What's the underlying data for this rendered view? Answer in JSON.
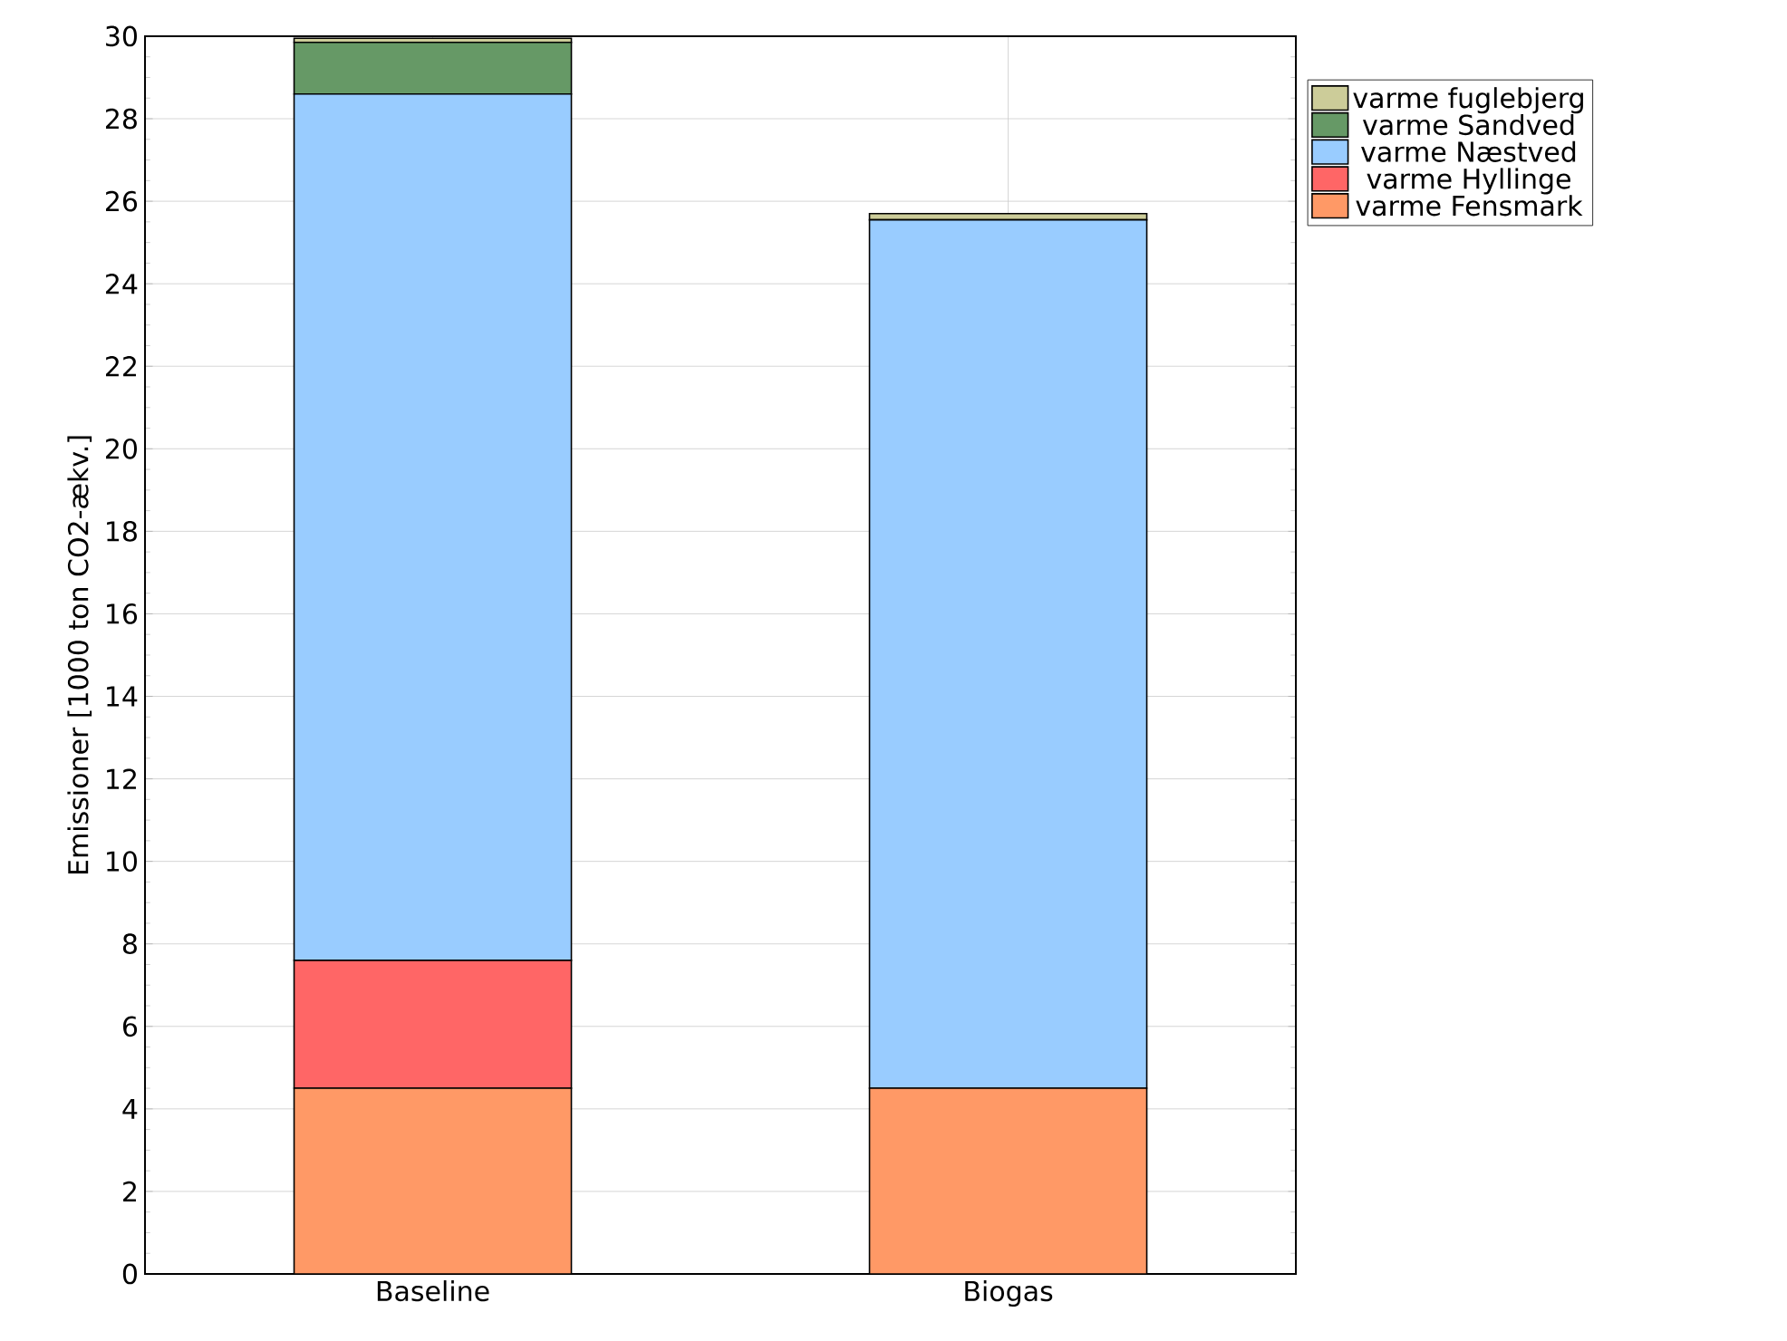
{
  "chart_data": {
    "type": "bar",
    "stacked": true,
    "ylabel": "Emissioner [1000 ton CO2-ækv.]",
    "categories": [
      "Baseline",
      "Biogas"
    ],
    "series": [
      {
        "name": "varme Fensmark",
        "color": "#ff9966",
        "values": [
          4.5,
          4.5
        ]
      },
      {
        "name": "varme Hyllinge",
        "color": "#ff6666",
        "values": [
          3.1,
          null
        ]
      },
      {
        "name": "varme Næstved",
        "color": "#99ccff",
        "values": [
          21.0,
          21.05
        ]
      },
      {
        "name": "varme Sandved",
        "color": "#669966",
        "values": [
          1.25,
          null
        ]
      },
      {
        "name": "varme fuglebjerg",
        "color": "#cccc99",
        "values": [
          0.1,
          0.15
        ]
      }
    ],
    "ylim": [
      0,
      30
    ],
    "yticks": [
      0,
      2,
      4,
      6,
      8,
      10,
      12,
      14,
      16,
      18,
      20,
      22,
      24,
      26,
      28,
      30
    ],
    "grid": true,
    "legend": "top right"
  }
}
